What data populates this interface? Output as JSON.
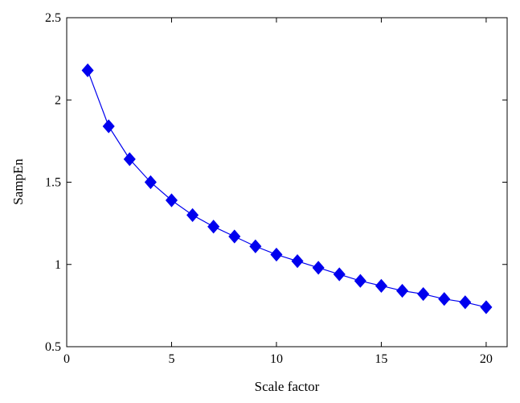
{
  "chart_data": {
    "type": "line",
    "title": "",
    "xlabel": "Scale factor",
    "ylabel": "SampEn",
    "xlim": [
      0,
      21
    ],
    "ylim": [
      0.5,
      2.5
    ],
    "xticks": [
      0,
      5,
      10,
      15,
      20
    ],
    "yticks": [
      0.5,
      1,
      1.5,
      2,
      2.5
    ],
    "xtick_labels": [
      "0",
      "5",
      "10",
      "15",
      "20"
    ],
    "ytick_labels": [
      "0.5",
      "1",
      "1.5",
      "2",
      "2.5"
    ],
    "grid": false,
    "legend": "none",
    "series": [
      {
        "color": "#0000ee",
        "marker": "diamond",
        "x": [
          1,
          2,
          3,
          4,
          5,
          6,
          7,
          8,
          9,
          10,
          11,
          12,
          13,
          14,
          15,
          16,
          17,
          18,
          19,
          20
        ],
        "y": [
          2.18,
          1.84,
          1.64,
          1.5,
          1.39,
          1.3,
          1.23,
          1.17,
          1.11,
          1.06,
          1.02,
          0.98,
          0.94,
          0.9,
          0.87,
          0.84,
          0.82,
          0.79,
          0.77,
          0.74
        ]
      }
    ]
  }
}
